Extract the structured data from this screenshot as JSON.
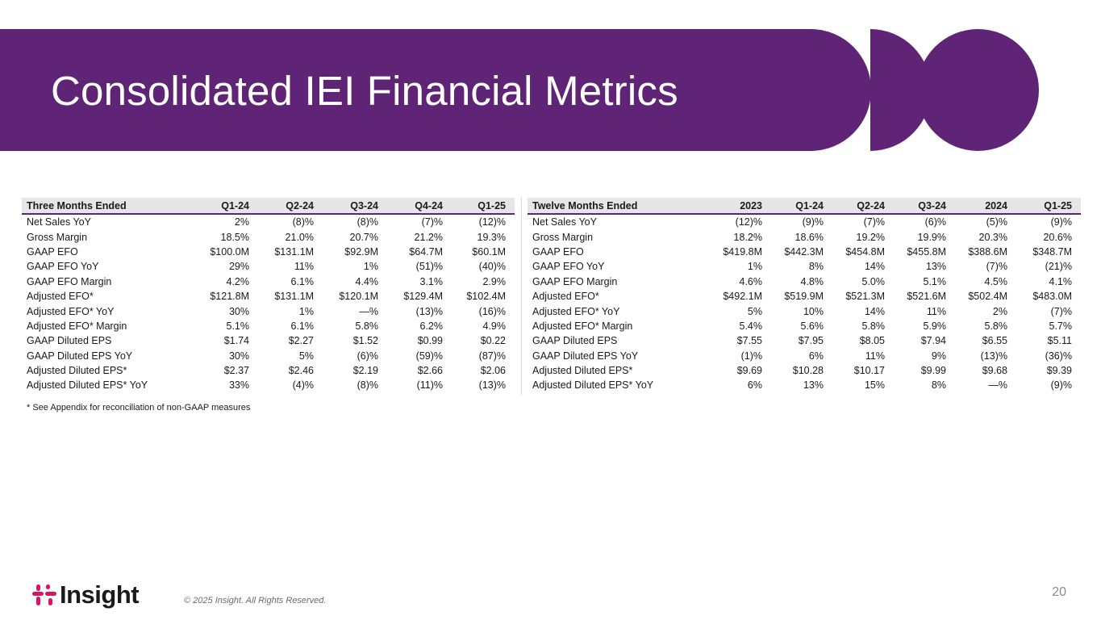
{
  "title": "Consolidated IEI Financial Metrics",
  "colors": {
    "brand_purple": "#5f2475",
    "header_gray": "#e6e6e6"
  },
  "three_months": {
    "header": [
      "Three Months Ended",
      "Q1-24",
      "Q2-24",
      "Q3-24",
      "Q4-24",
      "Q1-25"
    ],
    "rows": [
      [
        "Net Sales YoY",
        "2%",
        "(8)%",
        "(8)%",
        "(7)%",
        "(12)%"
      ],
      [
        "Gross Margin",
        "18.5%",
        "21.0%",
        "20.7%",
        "21.2%",
        "19.3%"
      ],
      [
        "GAAP EFO",
        "$100.0M",
        "$131.1M",
        "$92.9M",
        "$64.7M",
        "$60.1M"
      ],
      [
        "GAAP EFO YoY",
        "29%",
        "11%",
        "1%",
        "(51)%",
        "(40)%"
      ],
      [
        "GAAP EFO Margin",
        "4.2%",
        "6.1%",
        "4.4%",
        "3.1%",
        "2.9%"
      ],
      [
        "Adjusted EFO*",
        "$121.8M",
        "$131.1M",
        "$120.1M",
        "$129.4M",
        "$102.4M"
      ],
      [
        "Adjusted EFO* YoY",
        "30%",
        "1%",
        "—%",
        "(13)%",
        "(16)%"
      ],
      [
        "Adjusted EFO* Margin",
        "5.1%",
        "6.1%",
        "5.8%",
        "6.2%",
        "4.9%"
      ],
      [
        "GAAP Diluted EPS",
        "$1.74",
        "$2.27",
        "$1.52",
        "$0.99",
        "$0.22"
      ],
      [
        "GAAP Diluted EPS YoY",
        "30%",
        "5%",
        "(6)%",
        "(59)%",
        "(87)%"
      ],
      [
        "Adjusted Diluted EPS*",
        "$2.37",
        "$2.46",
        "$2.19",
        "$2.66",
        "$2.06"
      ],
      [
        "Adjusted Diluted EPS* YoY",
        "33%",
        "(4)%",
        "(8)%",
        "(11)%",
        "(13)%"
      ]
    ]
  },
  "twelve_months": {
    "header": [
      "Twelve Months Ended",
      "2023",
      "Q1-24",
      "Q2-24",
      "Q3-24",
      "2024",
      "Q1-25"
    ],
    "rows": [
      [
        "Net Sales YoY",
        "(12)%",
        "(9)%",
        "(7)%",
        "(6)%",
        "(5)%",
        "(9)%"
      ],
      [
        "Gross Margin",
        "18.2%",
        "18.6%",
        "19.2%",
        "19.9%",
        "20.3%",
        "20.6%"
      ],
      [
        "GAAP EFO",
        "$419.8M",
        "$442.3M",
        "$454.8M",
        "$455.8M",
        "$388.6M",
        "$348.7M"
      ],
      [
        "GAAP EFO YoY",
        "1%",
        "8%",
        "14%",
        "13%",
        "(7)%",
        "(21)%"
      ],
      [
        "GAAP EFO Margin",
        "4.6%",
        "4.8%",
        "5.0%",
        "5.1%",
        "4.5%",
        "4.1%"
      ],
      [
        "Adjusted EFO*",
        "$492.1M",
        "$519.9M",
        "$521.3M",
        "$521.6M",
        "$502.4M",
        "$483.0M"
      ],
      [
        "Adjusted EFO* YoY",
        "5%",
        "10%",
        "14%",
        "11%",
        "2%",
        "(7)%"
      ],
      [
        "Adjusted EFO* Margin",
        "5.4%",
        "5.6%",
        "5.8%",
        "5.9%",
        "5.8%",
        "5.7%"
      ],
      [
        "GAAP Diluted EPS",
        "$7.55",
        "$7.95",
        "$8.05",
        "$7.94",
        "$6.55",
        "$5.11"
      ],
      [
        "GAAP Diluted EPS YoY",
        "(1)%",
        "6%",
        "11%",
        "9%",
        "(13)%",
        "(36)%"
      ],
      [
        "Adjusted Diluted EPS*",
        "$9.69",
        "$10.28",
        "$10.17",
        "$9.99",
        "$9.68",
        "$9.39"
      ],
      [
        "Adjusted Diluted EPS* YoY",
        "6%",
        "13%",
        "15%",
        "8%",
        "—%",
        "(9)%"
      ]
    ]
  },
  "footnote": "* See Appendix for reconciliation of non-GAAP measures",
  "footer": {
    "logo_text": "Insight",
    "logo_reg": ".",
    "copyright": "© 2025 Insight. All Rights Reserved.",
    "page_number": "20"
  }
}
